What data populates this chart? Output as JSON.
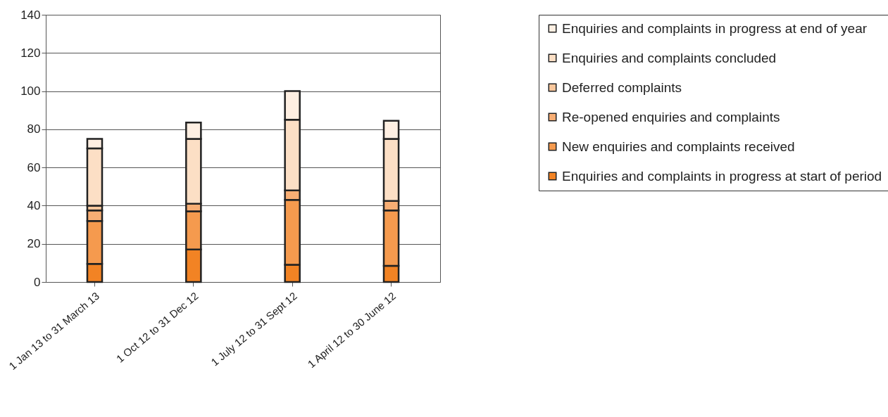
{
  "chart_data": {
    "type": "bar",
    "stacked": true,
    "categories": [
      "1 Jan 13 to 31 March 13",
      "1 Oct 12 to 31 Dec 12",
      "1 July 12 to 31 Sept 12",
      "1 April 12 to 30 June 12"
    ],
    "series": [
      {
        "name": "Enquiries and complaints in progress at start of period",
        "color": "#f28324",
        "values": [
          9.5,
          17,
          9,
          8.5
        ]
      },
      {
        "name": "New enquiries and complaints received",
        "color": "#f59a4e",
        "values": [
          22.5,
          20,
          34,
          29
        ]
      },
      {
        "name": "Re-opened enquiries and complaints",
        "color": "#f8ae74",
        "values": [
          5.5,
          4,
          5,
          5
        ]
      },
      {
        "name": "Deferred complaints",
        "color": "#fac79c",
        "values": [
          2.5,
          0,
          0,
          0
        ]
      },
      {
        "name": "Enquiries and complaints concluded",
        "color": "#fcdfc5",
        "values": [
          30,
          34,
          37,
          32.5
        ]
      },
      {
        "name": "Enquiries and complaints in progress at end of year",
        "color": "#feefe2",
        "values": [
          5,
          8.5,
          15,
          9.5
        ]
      }
    ],
    "ylim": [
      0,
      140
    ],
    "yticks": [
      0,
      20,
      40,
      60,
      80,
      100,
      120,
      140
    ],
    "grid": "y",
    "legend": "right"
  }
}
